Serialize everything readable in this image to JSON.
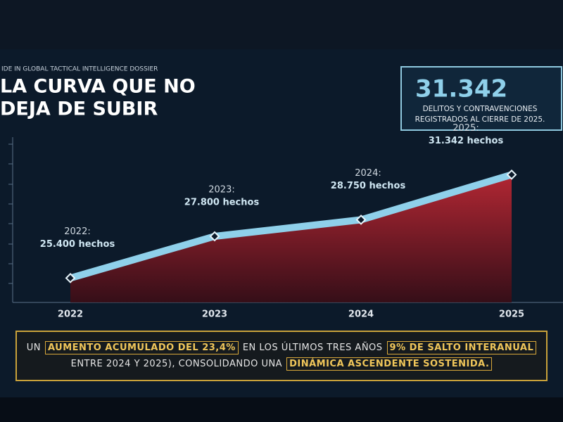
{
  "header": {
    "kicker": "IDE IN GLOBAL TACTICAL INTELLIGENCE DOSSIER",
    "title_lines": [
      "LA CURVA QUE NO",
      "DEJA DE SUBIR"
    ]
  },
  "callout": {
    "headline": "31.342",
    "lines": [
      "DELITOS Y CONTRAVENCIONES",
      "REGISTRADOS AL CIERRE DE 2025."
    ]
  },
  "chart_data": {
    "type": "area",
    "categories": [
      "2022",
      "2023",
      "2024",
      "2025"
    ],
    "series": [
      {
        "color": "#8fd0ea",
        "values": [
          25400,
          27800,
          28750,
          31342
        ],
        "value_labels": [
          "25.400 hechos",
          "27.800 hechos",
          "28.750 hechos",
          "31.342 hechos"
        ],
        "point_labels": [
          "2022:",
          "2023:",
          "2024:",
          "2025:"
        ]
      }
    ],
    "fill_color": "#b8222e",
    "ylim": [
      24000,
      33500
    ]
  },
  "banner": {
    "lines": [
      [
        {
          "text": "UN"
        },
        {
          "text": "AUMENTO ACUMULADO DEL 23,4%",
          "highlight": true
        },
        {
          "text": "EN LOS ÚLTIMOS TRES AÑOS"
        },
        {
          "text": "9% DE SALTO INTERANUAL",
          "highlight": true
        }
      ],
      [
        {
          "text": "ENTRE 2024 Y 2025), CONSOLIDANDO UNA"
        },
        {
          "text": "DINÁMICA ASCENDENTE SOSTENIDA.",
          "highlight": true
        }
      ]
    ]
  }
}
